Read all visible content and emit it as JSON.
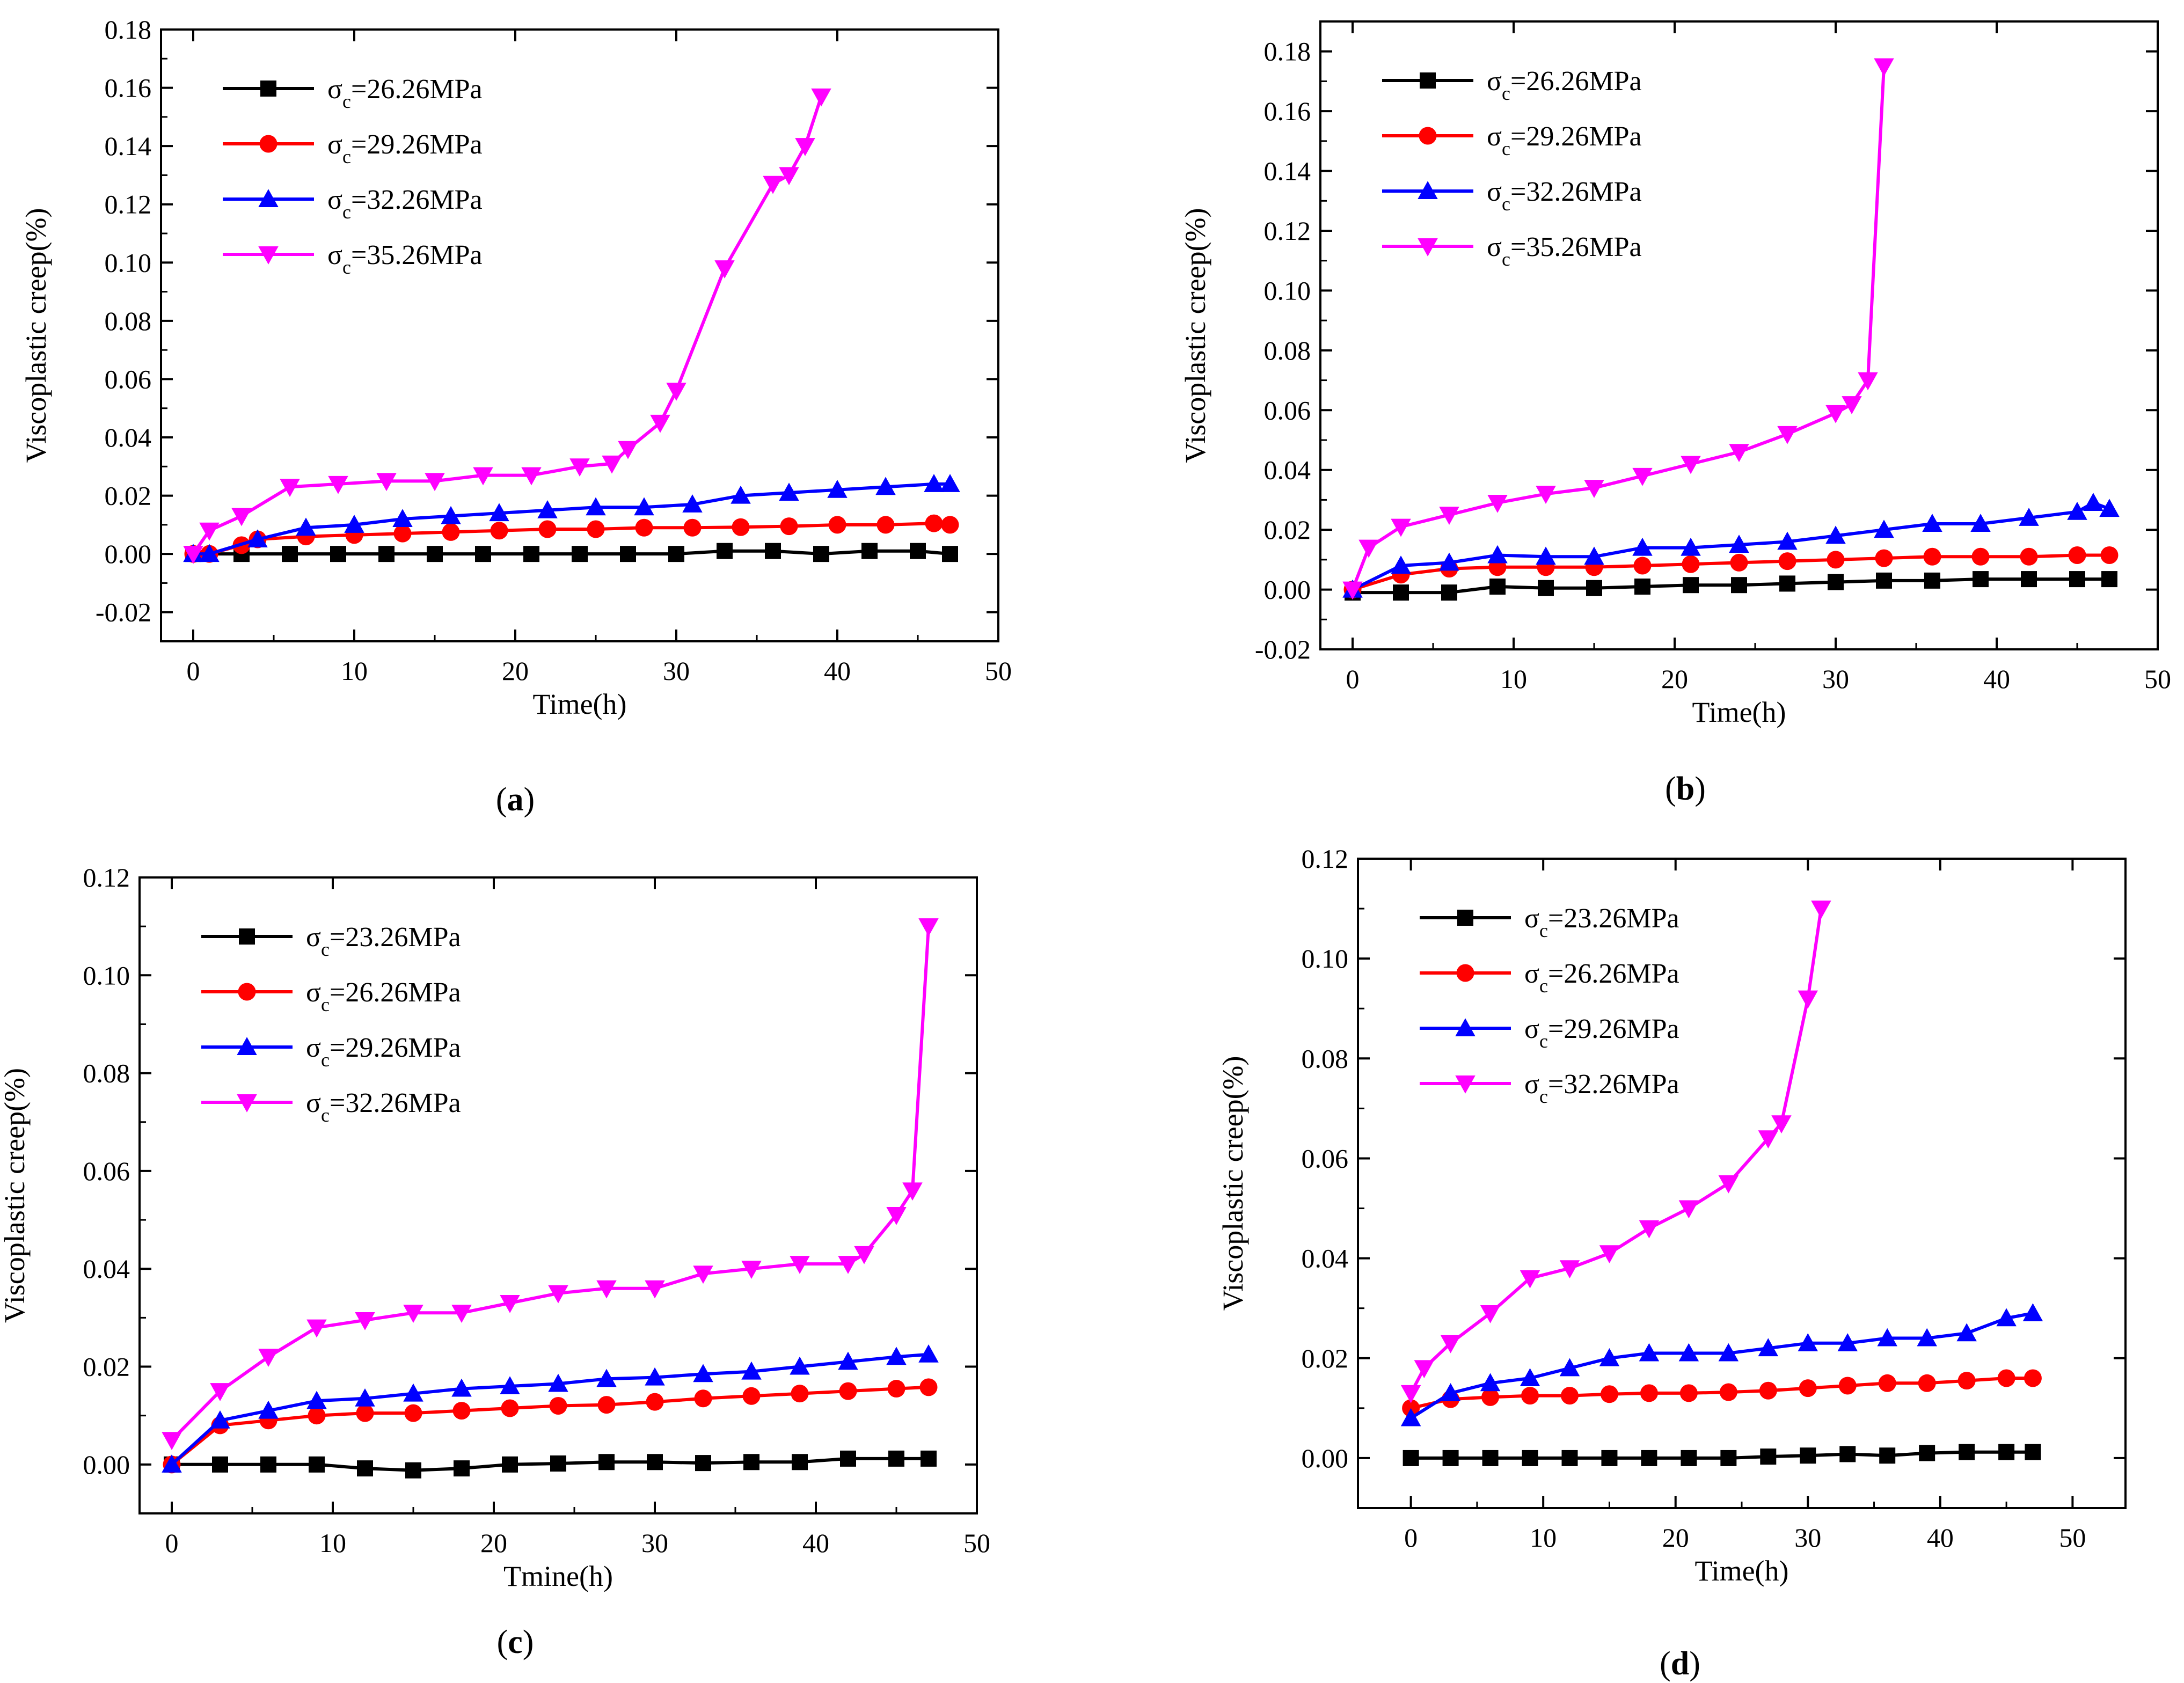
{
  "figure": {
    "description_panels": [
      "a",
      "b",
      "c",
      "d"
    ]
  },
  "chart_data": [
    {
      "type": "line",
      "panel_label": "(a)",
      "panel_letter": "a",
      "xlabel": "Time(h)",
      "ylabel": "Viscoplastic creep(%)",
      "xlim": [
        -2,
        50
      ],
      "ylim": [
        -0.03,
        0.18
      ],
      "xticks": [
        0,
        10,
        20,
        30,
        40,
        50
      ],
      "xtick_labels": [
        "0",
        "10",
        "20",
        "30",
        "40",
        "50"
      ],
      "yticks": [
        -0.02,
        0.0,
        0.02,
        0.04,
        0.06,
        0.08,
        0.1,
        0.12,
        0.14,
        0.16,
        0.18
      ],
      "ytick_labels": [
        "-0.02",
        "0.00",
        "0.02",
        "0.04",
        "0.06",
        "0.08",
        "0.10",
        "0.12",
        "0.14",
        "0.16",
        "0.18"
      ],
      "legend_position": "top-left",
      "series": [
        {
          "name": "σc=26.26MPa",
          "symbol": "σ",
          "sub": "c",
          "value_text": "=26.26MPa",
          "color": "#000000",
          "marker": "square",
          "x": [
            0,
            3,
            6,
            9,
            12,
            15,
            18,
            21,
            24,
            27,
            30,
            33,
            36,
            39,
            42,
            45,
            47
          ],
          "y": [
            0,
            0,
            0,
            0,
            0,
            0,
            0,
            0,
            0,
            0,
            0,
            0.001,
            0.001,
            0,
            0.001,
            0.001,
            0
          ]
        },
        {
          "name": "σc=29.26MPa",
          "symbol": "σ",
          "sub": "c",
          "value_text": "=29.26MPa",
          "color": "#ff0000",
          "marker": "circle",
          "x": [
            0,
            1,
            3,
            4,
            7,
            10,
            13,
            16,
            19,
            22,
            25,
            28,
            31,
            34,
            37,
            40,
            43,
            46,
            47
          ],
          "y": [
            0,
            0,
            0.003,
            0.005,
            0.006,
            0.0065,
            0.007,
            0.0075,
            0.008,
            0.0085,
            0.0085,
            0.009,
            0.009,
            0.0092,
            0.0095,
            0.01,
            0.01,
            0.0105,
            0.01
          ]
        },
        {
          "name": "σc=32.26MPa",
          "symbol": "σ",
          "sub": "c",
          "value_text": "=32.26MPa",
          "color": "#0000ff",
          "marker": "triangle-up",
          "x": [
            0,
            1,
            4,
            7,
            10,
            13,
            16,
            19,
            22,
            25,
            28,
            31,
            34,
            37,
            40,
            43,
            46,
            47
          ],
          "y": [
            0,
            0,
            0.005,
            0.009,
            0.01,
            0.012,
            0.013,
            0.014,
            0.015,
            0.016,
            0.016,
            0.017,
            0.02,
            0.021,
            0.022,
            0.023,
            0.024,
            0.024
          ]
        },
        {
          "name": "σc=35.26MPa",
          "symbol": "σ",
          "sub": "c",
          "value_text": "=35.26MPa",
          "color": "#ff00ff",
          "marker": "triangle-down",
          "x": [
            0,
            1,
            3,
            6,
            9,
            12,
            15,
            18,
            21,
            24,
            26,
            27,
            29,
            30,
            33,
            36,
            37,
            38,
            39
          ],
          "y": [
            0,
            0.008,
            0.013,
            0.023,
            0.024,
            0.025,
            0.025,
            0.027,
            0.027,
            0.03,
            0.031,
            0.036,
            0.045,
            0.056,
            0.098,
            0.127,
            0.13,
            0.14,
            0.157
          ]
        }
      ]
    },
    {
      "type": "line",
      "panel_label": "(b)",
      "panel_letter": "b",
      "xlabel": "Time(h)",
      "ylabel": "Viscoplastic creep(%)",
      "xlim": [
        -2,
        50
      ],
      "ylim": [
        -0.02,
        0.19
      ],
      "xticks": [
        0,
        10,
        20,
        30,
        40,
        50
      ],
      "xtick_labels": [
        "0",
        "10",
        "20",
        "30",
        "40",
        "50"
      ],
      "yticks": [
        -0.02,
        0.0,
        0.02,
        0.04,
        0.06,
        0.08,
        0.1,
        0.12,
        0.14,
        0.16,
        0.18
      ],
      "ytick_labels": [
        "-0.02",
        "0.00",
        "0.02",
        "0.04",
        "0.06",
        "0.08",
        "0.10",
        "0.12",
        "0.14",
        "0.16",
        "0.18"
      ],
      "legend_position": "top-left",
      "series": [
        {
          "name": "σc=26.26MPa",
          "symbol": "σ",
          "sub": "c",
          "value_text": "=26.26MPa",
          "color": "#000000",
          "marker": "square",
          "x": [
            0,
            3,
            6,
            9,
            12,
            15,
            18,
            21,
            24,
            27,
            30,
            33,
            36,
            39,
            42,
            45,
            47
          ],
          "y": [
            -0.001,
            -0.001,
            -0.001,
            0.001,
            0.0005,
            0.0005,
            0.001,
            0.0015,
            0.0015,
            0.002,
            0.0025,
            0.003,
            0.003,
            0.0035,
            0.0035,
            0.0035,
            0.0035
          ]
        },
        {
          "name": "σc=29.26MPa",
          "symbol": "σ",
          "sub": "c",
          "value_text": "=29.26MPa",
          "color": "#ff0000",
          "marker": "circle",
          "x": [
            0,
            3,
            6,
            9,
            12,
            15,
            18,
            21,
            24,
            27,
            30,
            33,
            36,
            39,
            42,
            45,
            47
          ],
          "y": [
            0,
            0.005,
            0.007,
            0.0075,
            0.0075,
            0.0075,
            0.008,
            0.0085,
            0.009,
            0.0095,
            0.01,
            0.0105,
            0.011,
            0.011,
            0.011,
            0.0115,
            0.0115
          ]
        },
        {
          "name": "σc=32.26MPa",
          "symbol": "σ",
          "sub": "c",
          "value_text": "=32.26MPa",
          "color": "#0000ff",
          "marker": "triangle-up",
          "x": [
            0,
            3,
            6,
            9,
            12,
            15,
            18,
            21,
            24,
            27,
            30,
            33,
            36,
            39,
            42,
            45,
            46,
            47
          ],
          "y": [
            0,
            0.008,
            0.009,
            0.0115,
            0.011,
            0.011,
            0.014,
            0.014,
            0.015,
            0.016,
            0.018,
            0.02,
            0.022,
            0.022,
            0.024,
            0.026,
            0.029,
            0.027
          ]
        },
        {
          "name": "σc=35.26MPa",
          "symbol": "σ",
          "sub": "c",
          "value_text": "=35.26MPa",
          "color": "#ff00ff",
          "marker": "triangle-down",
          "x": [
            0,
            1,
            3,
            6,
            9,
            12,
            15,
            18,
            21,
            24,
            27,
            30,
            31,
            32,
            33
          ],
          "y": [
            0,
            0.014,
            0.021,
            0.025,
            0.029,
            0.032,
            0.034,
            0.038,
            0.042,
            0.046,
            0.052,
            0.059,
            0.062,
            0.07,
            0.175
          ]
        }
      ]
    },
    {
      "type": "line",
      "panel_label": "(c)",
      "panel_letter": "c",
      "xlabel": "Tmine(h)",
      "ylabel": "Viscoplastic creep(%)",
      "xlim": [
        -2,
        50
      ],
      "ylim": [
        -0.01,
        0.12
      ],
      "xticks": [
        0,
        10,
        20,
        30,
        40,
        50
      ],
      "xtick_labels": [
        "0",
        "10",
        "20",
        "30",
        "40",
        "50"
      ],
      "yticks": [
        0.0,
        0.02,
        0.04,
        0.06,
        0.08,
        0.1,
        0.12
      ],
      "ytick_labels": [
        "0.00",
        "0.02",
        "0.04",
        "0.06",
        "0.08",
        "0.10",
        "0.12"
      ],
      "legend_position": "top-left",
      "series": [
        {
          "name": "σc=23.26MPa",
          "symbol": "σ",
          "sub": "c",
          "value_text": "=23.26MPa",
          "color": "#000000",
          "marker": "square",
          "x": [
            0,
            3,
            6,
            9,
            12,
            15,
            18,
            21,
            24,
            27,
            30,
            33,
            36,
            39,
            42,
            45,
            47
          ],
          "y": [
            0,
            0,
            0,
            0,
            -0.0008,
            -0.0012,
            -0.0008,
            0,
            0.0002,
            0.0005,
            0.0005,
            0.0003,
            0.0005,
            0.0005,
            0.0012,
            0.0012,
            0.0012
          ]
        },
        {
          "name": "σc=26.26MPa",
          "symbol": "σ",
          "sub": "c",
          "value_text": "=26.26MPa",
          "color": "#ff0000",
          "marker": "circle",
          "x": [
            0,
            3,
            6,
            9,
            12,
            15,
            18,
            21,
            24,
            27,
            30,
            33,
            36,
            39,
            42,
            45,
            47
          ],
          "y": [
            0,
            0.008,
            0.009,
            0.01,
            0.0105,
            0.0105,
            0.011,
            0.0115,
            0.012,
            0.0122,
            0.0128,
            0.0135,
            0.014,
            0.0145,
            0.015,
            0.0155,
            0.0158
          ]
        },
        {
          "name": "σc=29.26MPa",
          "symbol": "σ",
          "sub": "c",
          "value_text": "=29.26MPa",
          "color": "#0000ff",
          "marker": "triangle-up",
          "x": [
            0,
            3,
            6,
            9,
            12,
            15,
            18,
            21,
            24,
            27,
            30,
            33,
            36,
            39,
            42,
            45,
            47
          ],
          "y": [
            0,
            0.009,
            0.011,
            0.013,
            0.0135,
            0.0145,
            0.0155,
            0.016,
            0.0165,
            0.0175,
            0.0178,
            0.0185,
            0.019,
            0.02,
            0.021,
            0.022,
            0.0225
          ]
        },
        {
          "name": "σc=32.26MPa",
          "symbol": "σ",
          "sub": "c",
          "value_text": "=32.26MPa",
          "color": "#ff00ff",
          "marker": "triangle-down",
          "x": [
            0,
            3,
            6,
            9,
            12,
            15,
            18,
            21,
            24,
            27,
            30,
            33,
            36,
            39,
            42,
            43,
            45,
            46,
            47
          ],
          "y": [
            0.005,
            0.015,
            0.022,
            0.028,
            0.0295,
            0.031,
            0.031,
            0.033,
            0.035,
            0.036,
            0.036,
            0.039,
            0.04,
            0.041,
            0.041,
            0.043,
            0.051,
            0.056,
            0.11
          ]
        }
      ]
    },
    {
      "type": "line",
      "panel_label": "(d)",
      "panel_letter": "d",
      "xlabel": "Time(h)",
      "ylabel": "Viscoplastic creep(%)",
      "xlim": [
        -4,
        54
      ],
      "ylim": [
        -0.01,
        0.12
      ],
      "xticks": [
        0,
        10,
        20,
        30,
        40,
        50
      ],
      "xtick_labels": [
        "0",
        "10",
        "20",
        "30",
        "40",
        "50"
      ],
      "yticks": [
        0.0,
        0.02,
        0.04,
        0.06,
        0.08,
        0.1,
        0.12
      ],
      "ytick_labels": [
        "0.00",
        "0.02",
        "0.04",
        "0.06",
        "0.08",
        "0.10",
        "0.12"
      ],
      "legend_position": "top-left",
      "series": [
        {
          "name": "σc=23.26MPa",
          "symbol": "σ",
          "sub": "c",
          "value_text": "=23.26MPa",
          "color": "#000000",
          "marker": "square",
          "x": [
            0,
            3,
            6,
            9,
            12,
            15,
            18,
            21,
            24,
            27,
            30,
            33,
            36,
            39,
            42,
            45,
            47
          ],
          "y": [
            0,
            0,
            0,
            0,
            0,
            0,
            0,
            0,
            0,
            0.0003,
            0.0005,
            0.0008,
            0.0005,
            0.001,
            0.0012,
            0.0012,
            0.0012
          ]
        },
        {
          "name": "σc=26.26MPa",
          "symbol": "σ",
          "sub": "c",
          "value_text": "=26.26MPa",
          "color": "#ff0000",
          "marker": "circle",
          "x": [
            0,
            3,
            6,
            9,
            12,
            15,
            18,
            21,
            24,
            27,
            30,
            33,
            36,
            39,
            42,
            45,
            47
          ],
          "y": [
            0.01,
            0.0118,
            0.0122,
            0.0125,
            0.0125,
            0.0128,
            0.013,
            0.013,
            0.0132,
            0.0135,
            0.014,
            0.0145,
            0.015,
            0.015,
            0.0155,
            0.016,
            0.016
          ]
        },
        {
          "name": "σc=29.26MPa",
          "symbol": "σ",
          "sub": "c",
          "value_text": "=29.26MPa",
          "color": "#0000ff",
          "marker": "triangle-up",
          "x": [
            0,
            3,
            6,
            9,
            12,
            15,
            18,
            21,
            24,
            27,
            30,
            33,
            36,
            39,
            42,
            45,
            47
          ],
          "y": [
            0.008,
            0.013,
            0.015,
            0.016,
            0.018,
            0.02,
            0.021,
            0.021,
            0.021,
            0.022,
            0.023,
            0.023,
            0.024,
            0.024,
            0.025,
            0.028,
            0.029
          ]
        },
        {
          "name": "σc=32.26MPa",
          "symbol": "σ",
          "sub": "c",
          "value_text": "=32.26MPa",
          "color": "#ff00ff",
          "marker": "triangle-down",
          "x": [
            0,
            1,
            3,
            6,
            9,
            12,
            15,
            18,
            21,
            24,
            27,
            28,
            30,
            31
          ],
          "y": [
            0.013,
            0.018,
            0.023,
            0.029,
            0.036,
            0.038,
            0.041,
            0.046,
            0.05,
            0.055,
            0.064,
            0.067,
            0.092,
            0.11
          ]
        }
      ]
    }
  ]
}
